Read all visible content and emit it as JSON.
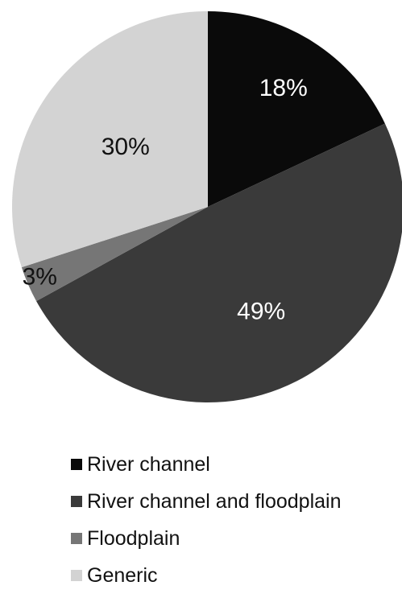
{
  "chart_data": {
    "type": "pie",
    "series": [
      {
        "name": "River channel",
        "value": 18,
        "label": "18%",
        "color": "#0a0a0a",
        "label_color": "#ffffff"
      },
      {
        "name": "River channel and floodplain",
        "value": 49,
        "label": "49%",
        "color": "#3a3a3a",
        "label_color": "#ffffff"
      },
      {
        "name": "Floodplain",
        "value": 3,
        "label": "3%",
        "color": "#767676",
        "label_color": "#111111"
      },
      {
        "name": "Generic",
        "value": 30,
        "label": "30%",
        "color": "#d3d3d3",
        "label_color": "#111111"
      }
    ],
    "start_angle": "12 o'clock",
    "direction": "clockwise",
    "legend_position": "bottom"
  }
}
